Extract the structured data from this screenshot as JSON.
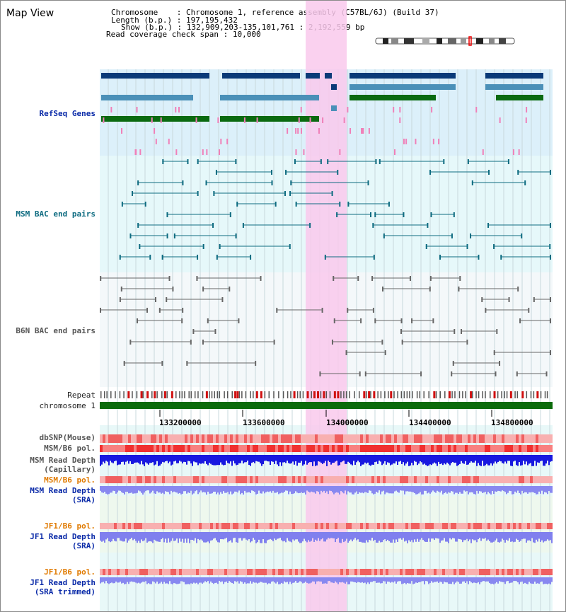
{
  "title": "Map View",
  "info": {
    "chromosome_label": "Chromosome",
    "chromosome_value": "Chromosome 1, reference assembly (C57BL/6J) (Build 37)",
    "length_label": "Length (b.p.)",
    "length_value": "197,195,432",
    "show_label": "Show (b.p.)",
    "show_value": "132,909,203-135,101,761 : 2,192,559 bp",
    "span_label": "Read coverage check span",
    "span_value": "10,000"
  },
  "tracks": {
    "refseq": "RefSeq Genes",
    "msm_bac": "MSM BAC end pairs",
    "b6n_bac": "B6N BAC end pairs",
    "repeat": "Repeat",
    "chromosome": "chromosome 1",
    "dbsnp": "dbSNP(Mouse)",
    "msm_b6_pol_1": "MSM/B6 pol.",
    "msm_depth_cap_1": "MSM Read Depth",
    "msm_depth_cap_2": "(Capillary)",
    "msm_b6_pol_2": "MSM/B6 pol.",
    "msm_depth_sra_1": "MSM Read Depth",
    "msm_depth_sra_2": "(SRA)",
    "jf1_b6_pol_1": "JF1/B6 pol.",
    "jf1_depth_sra_1": "JF1 Read Depth",
    "jf1_depth_sra_2": "(SRA)",
    "jf1_b6_pol_2": "JF1/B6 pol.",
    "jf1_depth_trim_1": "JF1 Read Depth",
    "jf1_depth_trim_2": "(SRA trimmed)"
  },
  "ticks": [
    "133200000",
    "133600000",
    "134000000",
    "134400000",
    "134800000"
  ],
  "colors": {
    "highlight": "#f9c9ec",
    "refseq_bg": "#dcf0fa",
    "msm_bg": "#e6f8fa",
    "b6n_bg": "#f4f8fa",
    "gene_dark": "#0a3a78",
    "gene_mid": "#4a90b8",
    "gene_green": "#0a6a10",
    "chromosome": "#0b6b0b",
    "depth_blue": "#1818e0",
    "depth_light": "#8888f0"
  }
}
